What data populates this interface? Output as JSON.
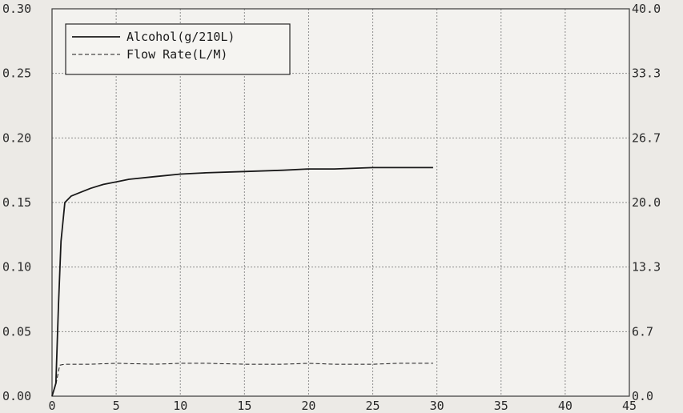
{
  "chart_data": {
    "type": "line",
    "title": "",
    "xlabel": "",
    "ylabel": "",
    "xlim": [
      0,
      45
    ],
    "ylim": [
      0,
      0.3
    ],
    "y2lim": [
      0,
      40.0
    ],
    "x_ticks": [
      "0",
      "5",
      "10",
      "15",
      "20",
      "25",
      "30",
      "35",
      "40",
      "45"
    ],
    "y_ticks": [
      "0.00",
      "0.05",
      "0.10",
      "0.15",
      "0.20",
      "0.25",
      "0.30"
    ],
    "y2_ticks": [
      "0.0",
      "6.7",
      "13.3",
      "20.0",
      "26.7",
      "33.3",
      "40.0"
    ],
    "grid": true,
    "legend_position": "top-left",
    "colors": {
      "background": "#eceae6",
      "line": "#1a1a1a",
      "grid": "#8d8d8d"
    },
    "series": [
      {
        "name": "Alcohol(g/210L)",
        "style": "solid",
        "axis": "left",
        "x": [
          0,
          0.3,
          0.5,
          0.7,
          1.0,
          1.5,
          2,
          3,
          4,
          5,
          6,
          8,
          10,
          12,
          15,
          18,
          20,
          22,
          25,
          27,
          29.7
        ],
        "y": [
          0,
          0.01,
          0.07,
          0.12,
          0.15,
          0.155,
          0.157,
          0.161,
          0.164,
          0.166,
          0.168,
          0.17,
          0.172,
          0.173,
          0.174,
          0.175,
          0.176,
          0.176,
          0.177,
          0.177,
          0.177
        ]
      },
      {
        "name": "Flow Rate(L/M)",
        "style": "dashed",
        "axis": "right",
        "x": [
          0,
          0.3,
          0.6,
          1,
          3,
          5,
          8,
          10,
          12,
          15,
          18,
          20,
          22,
          25,
          27,
          29.7
        ],
        "y": [
          0,
          1.2,
          3.2,
          3.3,
          3.3,
          3.4,
          3.3,
          3.4,
          3.4,
          3.3,
          3.3,
          3.4,
          3.3,
          3.3,
          3.4,
          3.4
        ]
      }
    ]
  }
}
